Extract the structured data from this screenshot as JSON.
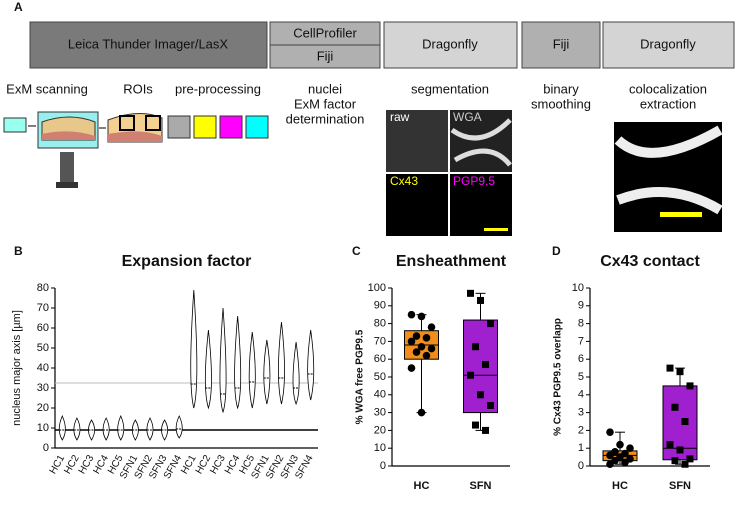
{
  "workflow": {
    "letter": "A",
    "tools": [
      {
        "label": "Leica Thunder Imager/LasX"
      },
      {
        "label": "CellProfiler",
        "sub": "Fiji"
      },
      {
        "label": "Dragonfly"
      },
      {
        "label": "Fiji"
      },
      {
        "label": "Dragonfly"
      }
    ],
    "steps": [
      "ExM scanning",
      "ROIs",
      "pre-processing",
      "nuclei",
      "ExM factor",
      "determination",
      "segmentation",
      "binary",
      "smoothing",
      "colocalization",
      "extraction"
    ],
    "images": [
      "raw",
      "WGA",
      "Cx43",
      "PGP9.5"
    ]
  },
  "chart_data": [
    {
      "type": "violin",
      "letter": "B",
      "title": "Expansion factor",
      "y_label": "nucleus major axis [µm]",
      "categories": [
        "HC1",
        "HC2",
        "HC3",
        "HC4",
        "HC5",
        "SFN1",
        "SFN2",
        "SFN3",
        "SFN4",
        "HC1",
        "HC2",
        "HC3",
        "HC4",
        "HC5",
        "SFN1",
        "SFN2",
        "SFN3",
        "SFN4"
      ],
      "values": [
        9,
        9,
        9,
        9,
        9,
        9,
        9,
        9,
        9.5,
        32,
        30,
        27,
        30,
        33,
        35,
        35,
        30,
        37
      ],
      "mins": [
        4,
        4,
        4,
        4,
        4,
        4,
        4,
        4,
        5,
        20,
        20,
        18,
        20,
        20,
        22,
        22,
        22,
        24
      ],
      "maxs": [
        16,
        15,
        14,
        15,
        16,
        14,
        15,
        14,
        16,
        79,
        59,
        70,
        66,
        58,
        54,
        63,
        53,
        59
      ],
      "reference_lines": [
        9,
        32.5
      ],
      "color": "#ffffff",
      "ylim": [
        0,
        80
      ],
      "yticks": [
        0,
        10,
        20,
        30,
        40,
        50,
        60,
        70,
        80
      ]
    },
    {
      "type": "box",
      "letter": "C",
      "title": "Ensheathment",
      "y_label": "% WGA free PGP9.5",
      "categories": [
        "HC",
        "SFN"
      ],
      "colors": [
        "#f28c1a",
        "#a020d0"
      ],
      "points": [
        [
          85,
          84,
          78,
          73,
          72,
          70,
          67,
          66,
          64,
          62,
          55,
          30
        ],
        [
          97,
          93,
          80,
          67,
          57,
          51,
          40,
          34,
          23,
          20
        ]
      ],
      "whisker_low": [
        30,
        20
      ],
      "q1": [
        60,
        30
      ],
      "median": [
        68,
        51
      ],
      "q3": [
        76,
        82
      ],
      "whisker_high": [
        85,
        97
      ],
      "ylim": [
        0,
        100
      ],
      "yticks": [
        0,
        10,
        20,
        30,
        40,
        50,
        60,
        70,
        80,
        90,
        100
      ]
    },
    {
      "type": "box",
      "letter": "D",
      "title": "Cx43 contact",
      "y_label": "% Cx43 PGP9.5 overlapp",
      "categories": [
        "HC",
        "SFN"
      ],
      "colors": [
        "#f28c1a",
        "#a020d0"
      ],
      "points": [
        [
          1.9,
          1.2,
          1,
          0.8,
          0.7,
          0.6,
          0.5,
          0.4,
          0.3,
          0.2,
          0.1
        ],
        [
          5.5,
          5.3,
          4.5,
          3.3,
          2.5,
          1.2,
          0.9,
          0.4,
          0.3,
          0.1
        ]
      ],
      "whisker_low": [
        0.1,
        0.1
      ],
      "q1": [
        0.3,
        0.35
      ],
      "median": [
        0.6,
        1
      ],
      "q3": [
        0.85,
        4.5
      ],
      "whisker_high": [
        1.9,
        5.5
      ],
      "ylim": [
        0,
        10
      ],
      "yticks": [
        0,
        1,
        2,
        3,
        4,
        5,
        6,
        7,
        8,
        9,
        10
      ]
    }
  ]
}
